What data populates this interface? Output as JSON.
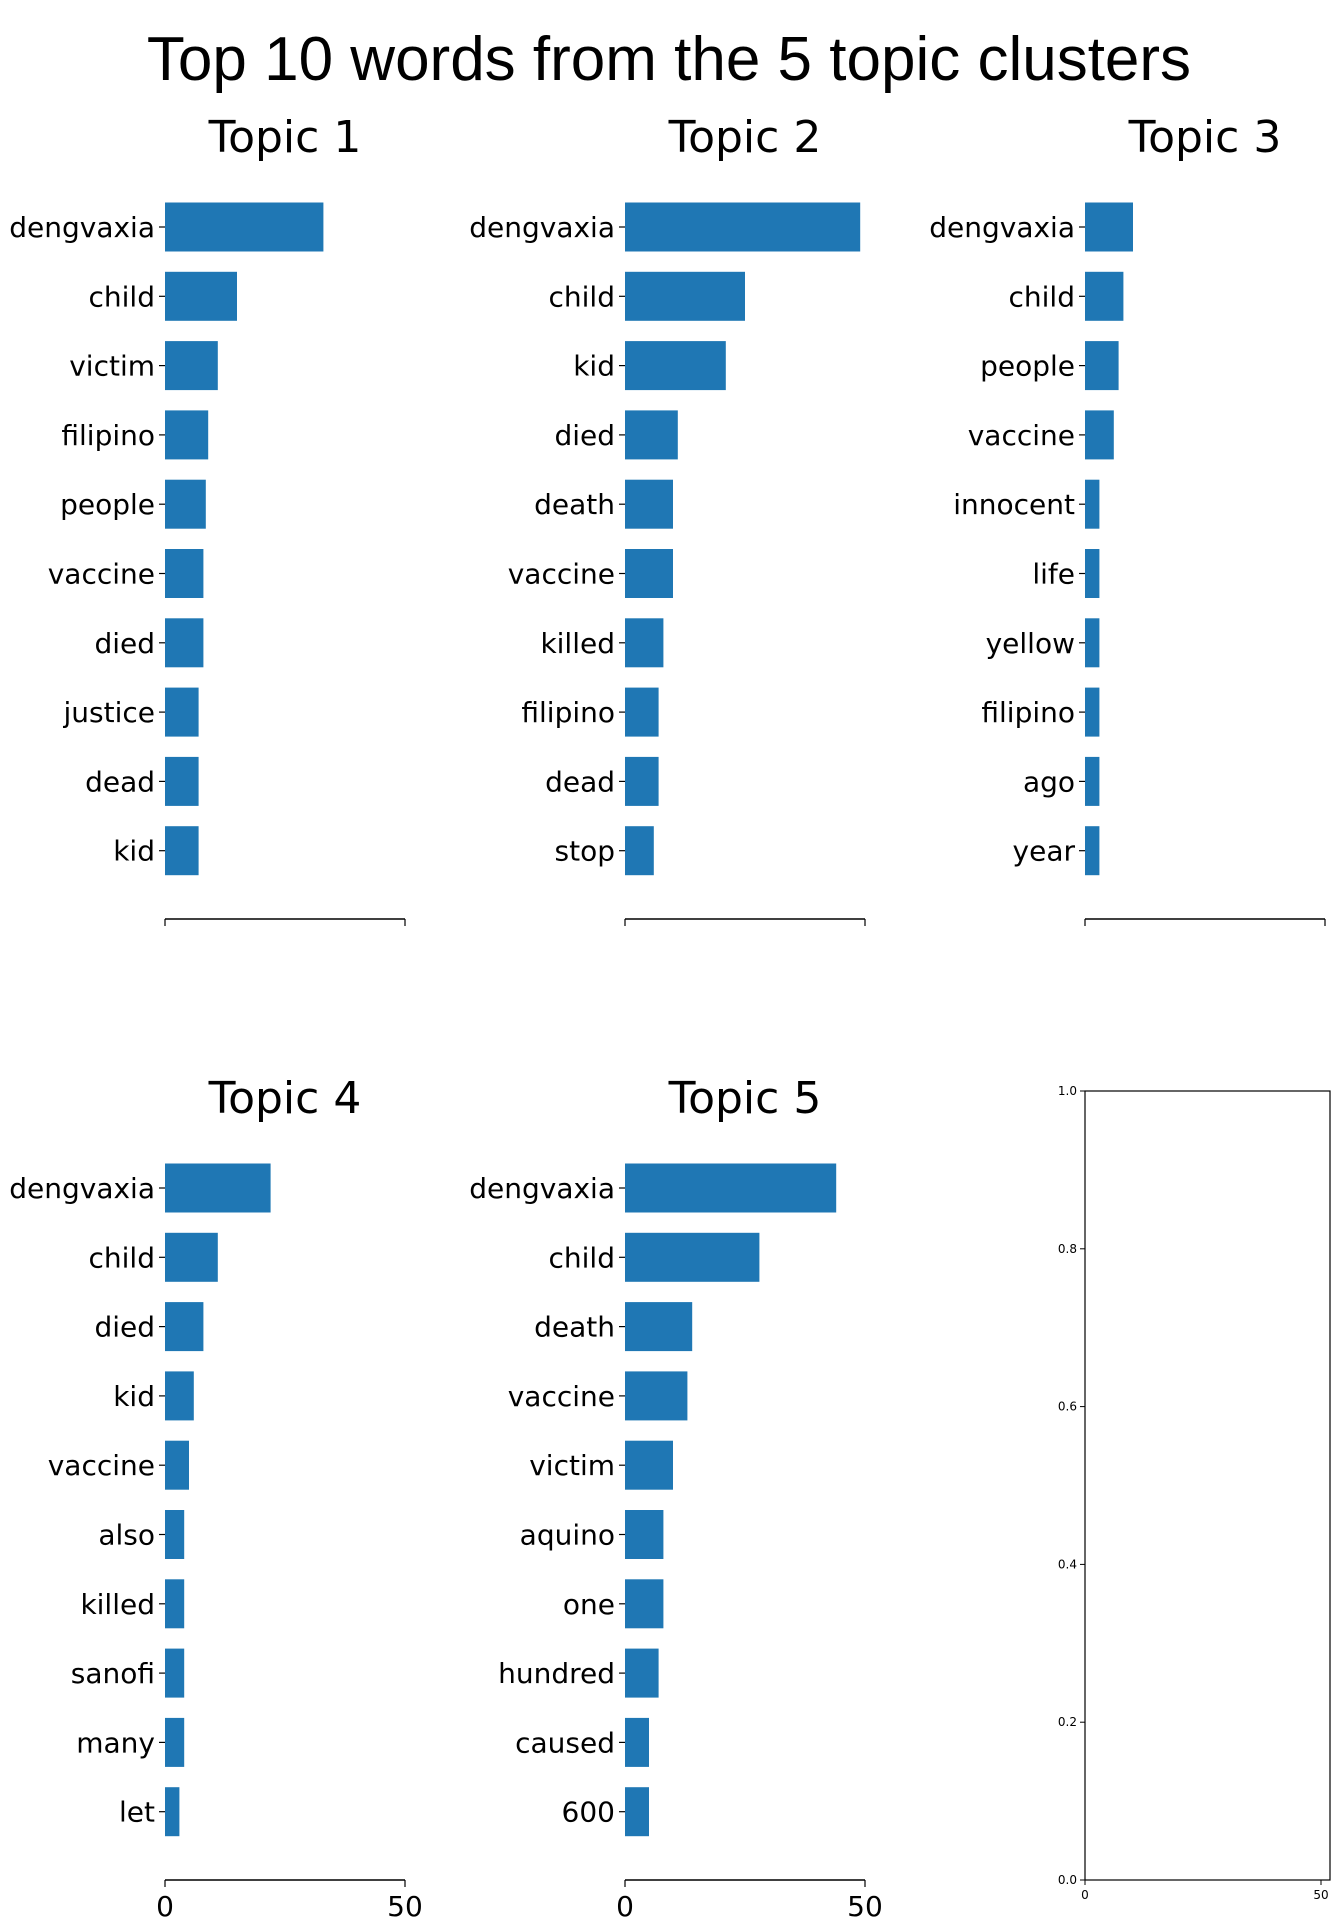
{
  "figure": {
    "title": "Top 10 words from the 5 topic clusters"
  },
  "chart_data": [
    {
      "type": "bar",
      "orientation": "horizontal",
      "title": "Topic 1",
      "categories": [
        "dengvaxia",
        "child",
        "victim",
        "filipino",
        "people",
        "vaccine",
        "died",
        "justice",
        "dead",
        "kid"
      ],
      "values": [
        33,
        15,
        11,
        9,
        8.5,
        8,
        8,
        7,
        7,
        7
      ],
      "xlim": [
        0,
        50
      ],
      "xticks": [
        "0",
        "50"
      ],
      "xtick_labels_visible": false,
      "spines": "left-bottom",
      "color": "#1f77b4"
    },
    {
      "type": "bar",
      "orientation": "horizontal",
      "title": "Topic 2",
      "categories": [
        "dengvaxia",
        "child",
        "kid",
        "died",
        "death",
        "vaccine",
        "killed",
        "filipino",
        "dead",
        "stop"
      ],
      "values": [
        49,
        25,
        21,
        11,
        10,
        10,
        8,
        7,
        7,
        6
      ],
      "xlim": [
        0,
        50
      ],
      "xticks": [
        "0",
        "50"
      ],
      "xtick_labels_visible": false,
      "spines": "left-bottom",
      "color": "#1f77b4"
    },
    {
      "type": "bar",
      "orientation": "horizontal",
      "title": "Topic 3",
      "categories": [
        "dengvaxia",
        "child",
        "people",
        "vaccine",
        "innocent",
        "life",
        "yellow",
        "filipino",
        "ago",
        "year"
      ],
      "values": [
        10,
        8,
        7,
        6,
        3,
        3,
        3,
        3,
        3,
        3
      ],
      "xlim": [
        0,
        50
      ],
      "xticks": [
        "0",
        "50"
      ],
      "xtick_labels_visible": false,
      "spines": "left-bottom",
      "color": "#1f77b4"
    },
    {
      "type": "bar",
      "orientation": "horizontal",
      "title": "Topic 4",
      "categories": [
        "dengvaxia",
        "child",
        "died",
        "kid",
        "vaccine",
        "also",
        "killed",
        "sanofi",
        "many",
        "let"
      ],
      "values": [
        22,
        11,
        8,
        6,
        5,
        4,
        4,
        4,
        4,
        3
      ],
      "xlim": [
        0,
        50
      ],
      "xticks": [
        "0",
        "50"
      ],
      "xtick_labels_visible": true,
      "spines": "left-bottom",
      "color": "#1f77b4"
    },
    {
      "type": "bar",
      "orientation": "horizontal",
      "title": "Topic 5",
      "categories": [
        "dengvaxia",
        "child",
        "death",
        "vaccine",
        "victim",
        "aquino",
        "one",
        "hundred",
        "caused",
        "600"
      ],
      "values": [
        44,
        28,
        14,
        13,
        10,
        8,
        8,
        7,
        5,
        5
      ],
      "xlim": [
        0,
        50
      ],
      "xticks": [
        "0",
        "50"
      ],
      "xtick_labels_visible": true,
      "spines": "left-bottom",
      "color": "#1f77b4"
    },
    {
      "type": "bar",
      "title": "",
      "categories": [],
      "values": [],
      "xlim": [
        0,
        50
      ],
      "ylim": [
        0,
        1
      ],
      "xticks": [
        "0",
        "50"
      ],
      "yticks": [
        "0.0",
        "0.2",
        "0.4",
        "0.6",
        "0.8",
        "1.0"
      ],
      "xtick_labels_visible": true,
      "spines": "all",
      "empty": true
    }
  ]
}
